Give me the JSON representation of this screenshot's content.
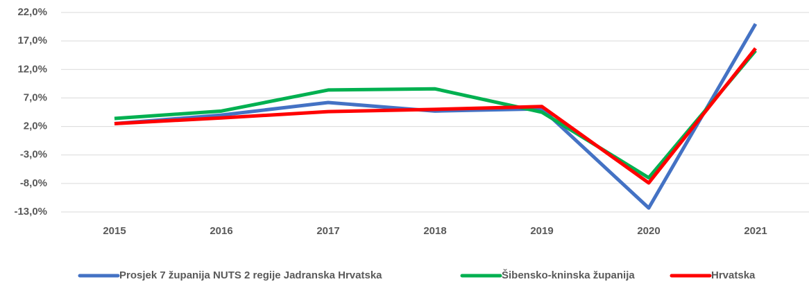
{
  "chart_data": {
    "type": "line",
    "categories": [
      "2015",
      "2016",
      "2017",
      "2018",
      "2019",
      "2020",
      "2021"
    ],
    "series": [
      {
        "name": "Prosjek 7 županija NUTS 2 regije Jadranska Hrvatska",
        "color": "#4472c4",
        "values": [
          2.5,
          4.0,
          6.2,
          4.7,
          5.1,
          -12.3,
          20.0
        ]
      },
      {
        "name": "Šibensko-kninska županija",
        "color": "#00b050",
        "values": [
          3.4,
          4.7,
          8.4,
          8.6,
          4.5,
          -7.0,
          15.3
        ]
      },
      {
        "name": "Hrvatska",
        "color": "#ff0000",
        "values": [
          2.5,
          3.5,
          4.6,
          5.0,
          5.5,
          -7.9,
          15.7
        ]
      }
    ],
    "ylim": [
      -13,
      22
    ],
    "yticks": [
      {
        "value": -13,
        "label": "-13,0%"
      },
      {
        "value": -8,
        "label": "-8,0%"
      },
      {
        "value": -3,
        "label": "-3,0%"
      },
      {
        "value": 2,
        "label": "2,0%"
      },
      {
        "value": 7,
        "label": "7,0%"
      },
      {
        "value": 12,
        "label": "12,0%"
      },
      {
        "value": 17,
        "label": "17,0%"
      },
      {
        "value": 22,
        "label": "22,0%"
      }
    ],
    "grid": true,
    "legend": "bottom"
  }
}
